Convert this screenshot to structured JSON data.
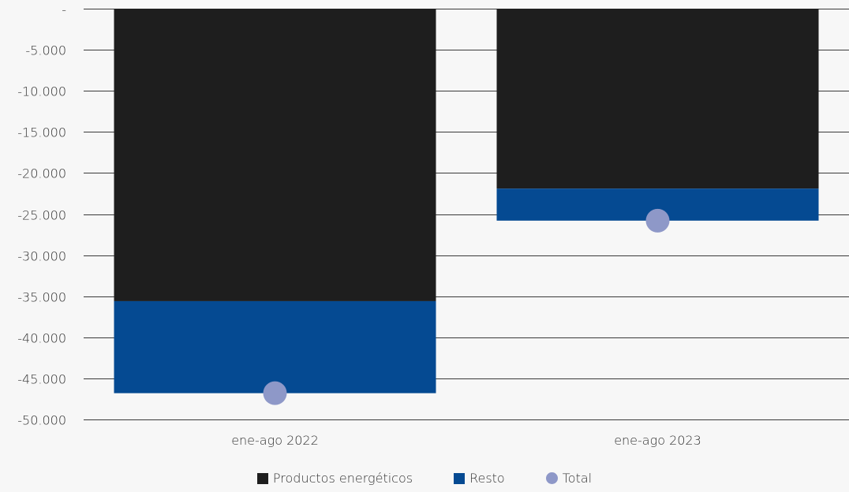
{
  "chart_data": {
    "type": "bar",
    "stacked": true,
    "categories": [
      "ene-ago 2022",
      "ene-ago 2023"
    ],
    "series": [
      {
        "name": "Productos energéticos",
        "kind": "bar",
        "color": "#1e1e1e",
        "values": [
          -35600,
          -21900
        ]
      },
      {
        "name": "Resto",
        "kind": "bar",
        "color": "#054a92",
        "values": [
          -11200,
          -3900
        ]
      },
      {
        "name": "Total",
        "kind": "dot",
        "color": "#8e98c8",
        "values": [
          -46800,
          -25800
        ]
      }
    ],
    "ylim": [
      -50000,
      0
    ],
    "yticks": [
      0,
      -5000,
      -10000,
      -15000,
      -20000,
      -25000,
      -30000,
      -35000,
      -40000,
      -45000,
      -50000
    ],
    "ytick_labels": [
      "-",
      "-5.000",
      "-10.000",
      "-15.000",
      "-20.000",
      "-25.000",
      "-30.000",
      "-35.000",
      "-40.000",
      "-45.000",
      "-50.000"
    ],
    "grid": true,
    "legend_position": "bottom-center"
  }
}
